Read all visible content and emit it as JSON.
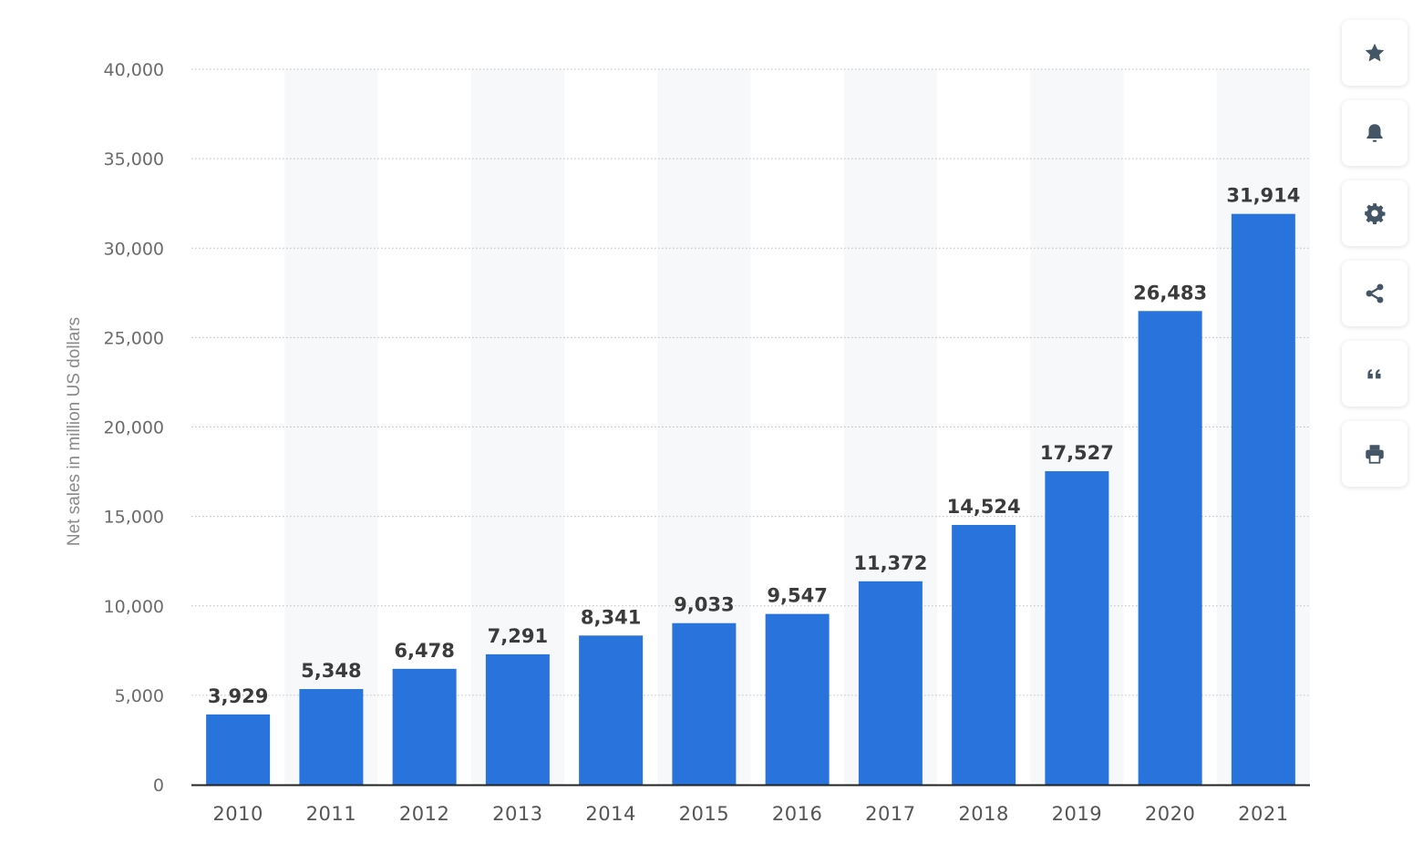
{
  "chart_data": {
    "type": "bar",
    "categories": [
      "2010",
      "2011",
      "2012",
      "2013",
      "2014",
      "2015",
      "2016",
      "2017",
      "2018",
      "2019",
      "2020",
      "2021"
    ],
    "values": [
      3929,
      5348,
      6478,
      7291,
      8341,
      9033,
      9547,
      11372,
      14524,
      17527,
      26483,
      31914
    ],
    "value_labels": [
      "3,929",
      "5,348",
      "6,478",
      "7,291",
      "8,341",
      "9,033",
      "9,547",
      "11,372",
      "14,524",
      "17,527",
      "26,483",
      "31,914"
    ],
    "title": "",
    "xlabel": "",
    "ylabel": "Net sales in million US dollars",
    "ylim": [
      0,
      40000
    ],
    "yticks": [
      0,
      5000,
      10000,
      15000,
      20000,
      25000,
      30000,
      35000,
      40000
    ],
    "ytick_labels": [
      "0",
      "5,000",
      "10,000",
      "15,000",
      "20,000",
      "25,000",
      "30,000",
      "35,000",
      "40,000"
    ],
    "grid": true,
    "bar_color": "#2874dc",
    "band_color": "#f7f8fa"
  },
  "toolbar": {
    "buttons": [
      {
        "name": "favorite",
        "icon": "star-icon"
      },
      {
        "name": "notification",
        "icon": "bell-icon"
      },
      {
        "name": "settings",
        "icon": "gear-icon"
      },
      {
        "name": "share",
        "icon": "share-icon"
      },
      {
        "name": "cite",
        "icon": "quote-icon"
      },
      {
        "name": "print",
        "icon": "print-icon"
      }
    ],
    "icon_color": "#445566"
  }
}
